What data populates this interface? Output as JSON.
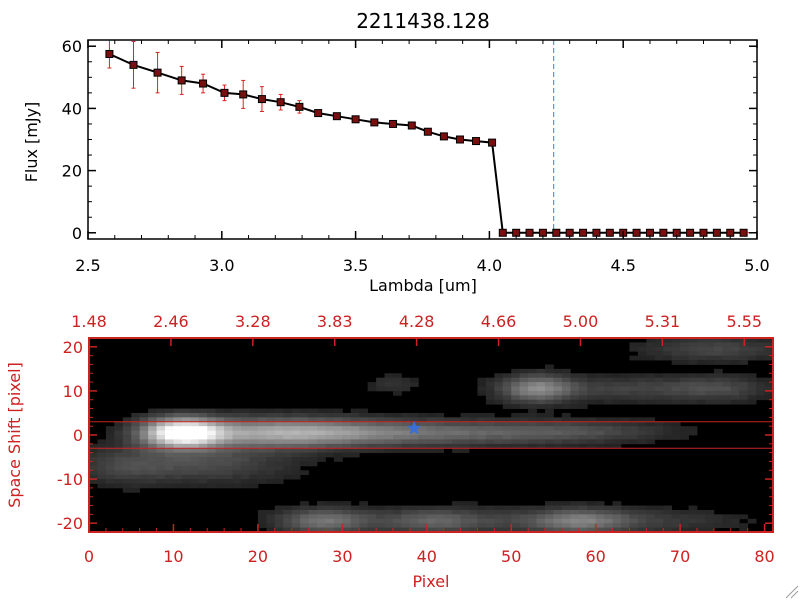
{
  "colors": {
    "axis_black": "#000000",
    "accent_red": "#cc2222",
    "spectrum_marker": "#7a0f0f",
    "error_bar": "#dd2222",
    "dashed_line": "#4aa0b8",
    "image_bg": "#000000",
    "star": "#3a6fd6"
  },
  "chart_data": [
    {
      "type": "line",
      "title": "2211438.128",
      "xlabel": "Lambda [um]",
      "ylabel": "Flux [mJy]",
      "xlim": [
        2.5,
        5.0
      ],
      "ylim": [
        -2,
        62
      ],
      "xticks": [
        2.5,
        3.0,
        3.5,
        4.0,
        4.5,
        5.0
      ],
      "xtick_labels": [
        "2.5",
        "3.0",
        "3.5",
        "4.0",
        "4.5",
        "5.0"
      ],
      "yticks": [
        0,
        20,
        40,
        60
      ],
      "ytick_labels": [
        "0",
        "20",
        "40",
        "60"
      ],
      "vline_x": 4.24,
      "hline_y": 0,
      "grid": false,
      "series": [
        {
          "x": [
            2.58,
            2.67,
            2.76,
            2.85,
            2.93,
            3.01,
            3.08,
            3.15,
            3.22,
            3.29,
            3.36,
            3.43,
            3.5,
            3.57,
            3.64,
            3.71,
            3.77,
            3.83,
            3.89,
            3.95,
            4.01,
            4.05,
            4.1,
            4.15,
            4.2,
            4.25,
            4.3,
            4.35,
            4.4,
            4.45,
            4.5,
            4.55,
            4.6,
            4.65,
            4.7,
            4.75,
            4.8,
            4.85,
            4.9,
            4.95
          ],
          "y": [
            57.5,
            54.0,
            51.5,
            49.0,
            48.0,
            45.0,
            44.5,
            43.0,
            42.0,
            40.5,
            38.5,
            37.5,
            36.5,
            35.5,
            35.0,
            34.5,
            32.5,
            31.0,
            30.0,
            29.5,
            29.0,
            0,
            0,
            0,
            0,
            0,
            0,
            0,
            0,
            0,
            0,
            0,
            0,
            0,
            0,
            0,
            0,
            0,
            0,
            0
          ],
          "yerr": [
            4.5,
            7.5,
            6.5,
            4.5,
            3.0,
            2.5,
            4.5,
            4.0,
            2.5,
            2.0,
            1.0,
            0.8,
            0.8,
            0.8,
            0.7,
            0.7,
            0.8,
            0.8,
            0.8,
            0.8,
            0.8,
            0,
            0,
            0,
            0,
            0,
            0,
            0,
            0,
            0,
            0,
            0,
            0,
            0,
            0,
            0,
            0,
            0,
            0,
            0
          ]
        }
      ]
    },
    {
      "type": "heatmap",
      "xlabel": "Pixel",
      "ylabel": "Space Shift [pixel]",
      "xlim": [
        0,
        81
      ],
      "ylim": [
        -22,
        22
      ],
      "xticks": [
        0,
        10,
        20,
        30,
        40,
        50,
        60,
        70,
        80
      ],
      "xtick_labels": [
        "0",
        "10",
        "20",
        "30",
        "40",
        "50",
        "60",
        "70",
        "80"
      ],
      "yticks": [
        -20,
        -10,
        0,
        10,
        20
      ],
      "ytick_labels": [
        "-20",
        "-10",
        "0",
        "10",
        "20"
      ],
      "top_xticks": [
        0,
        9.7,
        19.4,
        29.1,
        38.8,
        48.5,
        58.2,
        67.9,
        77.6
      ],
      "top_tick_labels": [
        "1.48",
        "2.46",
        "3.28",
        "3.83",
        "4.28",
        "4.66",
        "5.00",
        "5.31",
        "5.55"
      ],
      "hlines": [
        3,
        -3
      ],
      "star": {
        "x": 38.5,
        "y": 1.5
      },
      "sources": [
        {
          "x": 11,
          "y": 0.5,
          "sx": 3.2,
          "sy": 2.3,
          "amp": 1.0
        },
        {
          "x": 22,
          "y": 0.5,
          "sx": 8.0,
          "sy": 2.4,
          "amp": 0.5
        },
        {
          "x": 38,
          "y": 0.5,
          "sx": 12.0,
          "sy": 2.0,
          "amp": 0.35
        },
        {
          "x": 58,
          "y": 0.8,
          "sx": 8.0,
          "sy": 1.8,
          "amp": 0.18
        },
        {
          "x": 14,
          "y": -6.5,
          "sx": 7.0,
          "sy": 3.0,
          "amp": 0.22
        },
        {
          "x": 4,
          "y": -7,
          "sx": 4.0,
          "sy": 3.0,
          "amp": 0.15
        },
        {
          "x": 53,
          "y": 10.5,
          "sx": 3.0,
          "sy": 2.2,
          "amp": 0.45
        },
        {
          "x": 65,
          "y": 10.5,
          "sx": 8.0,
          "sy": 2.0,
          "amp": 0.18
        },
        {
          "x": 75,
          "y": 10.5,
          "sx": 4.0,
          "sy": 2.0,
          "amp": 0.15
        },
        {
          "x": 74,
          "y": 19.5,
          "sx": 6.0,
          "sy": 2.0,
          "amp": 0.2
        },
        {
          "x": 36,
          "y": 11.5,
          "sx": 2.0,
          "sy": 1.5,
          "amp": 0.12
        },
        {
          "x": 28,
          "y": -19.5,
          "sx": 4.0,
          "sy": 2.0,
          "amp": 0.4
        },
        {
          "x": 40,
          "y": -19.5,
          "sx": 4.0,
          "sy": 2.0,
          "amp": 0.25
        },
        {
          "x": 58,
          "y": -19.5,
          "sx": 4.0,
          "sy": 2.0,
          "amp": 0.35
        },
        {
          "x": 47,
          "y": -19.5,
          "sx": 6.0,
          "sy": 2.0,
          "amp": 0.15
        },
        {
          "x": 66,
          "y": -19.5,
          "sx": 8.0,
          "sy": 2.0,
          "amp": 0.15
        }
      ]
    }
  ]
}
